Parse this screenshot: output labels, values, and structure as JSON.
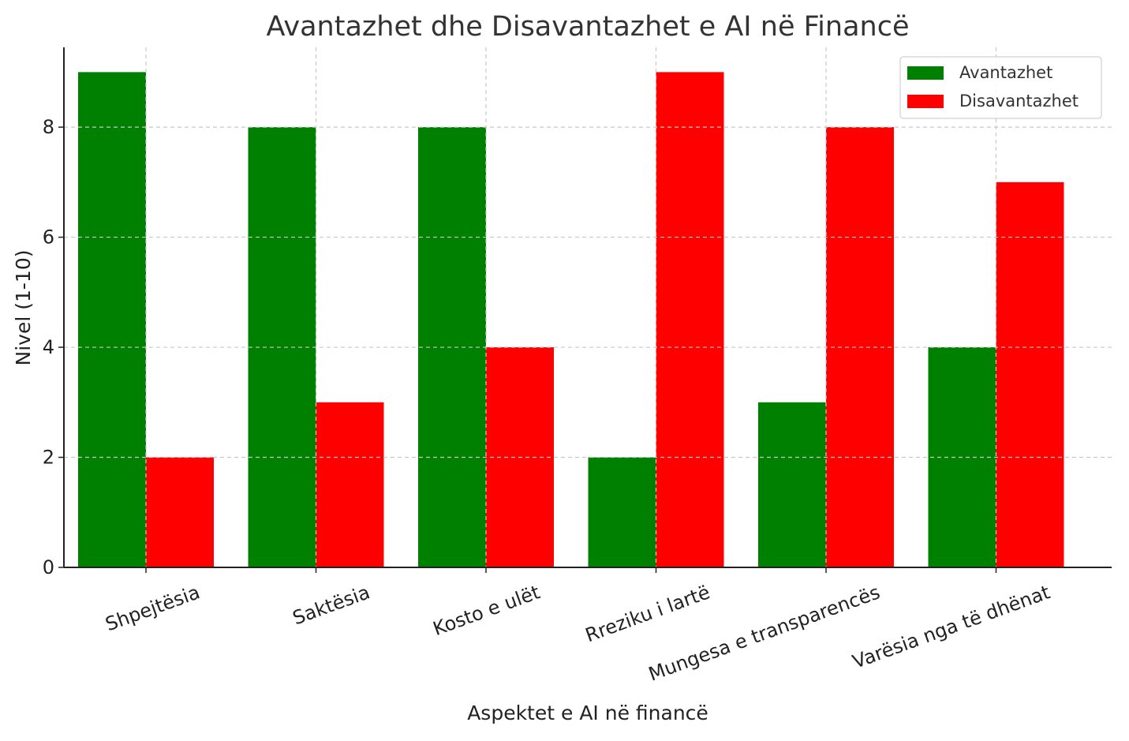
{
  "chart_data": {
    "type": "bar",
    "title": "Avantazhet dhe Disavantazhet e AI në Financë",
    "xlabel": "Aspektet e AI në financë",
    "ylabel": "Nivel (1-10)",
    "categories": [
      "Shpejtësia",
      "Saktësia",
      "Kosto e ulët",
      "Rreziku i lartë",
      "Mungesa e transparencës",
      "Varësia nga të dhënat"
    ],
    "series": [
      {
        "name": "Avantazhet",
        "values": [
          9,
          8,
          8,
          2,
          3,
          4
        ],
        "color": "#008000"
      },
      {
        "name": "Disavantazhet",
        "values": [
          2,
          3,
          4,
          9,
          8,
          7
        ],
        "color": "#ff0000"
      }
    ],
    "yticks": [
      "0",
      "2",
      "4",
      "6",
      "8"
    ],
    "ylim": [
      0,
      9.45
    ],
    "grid": true,
    "legend_position": "top-right"
  }
}
